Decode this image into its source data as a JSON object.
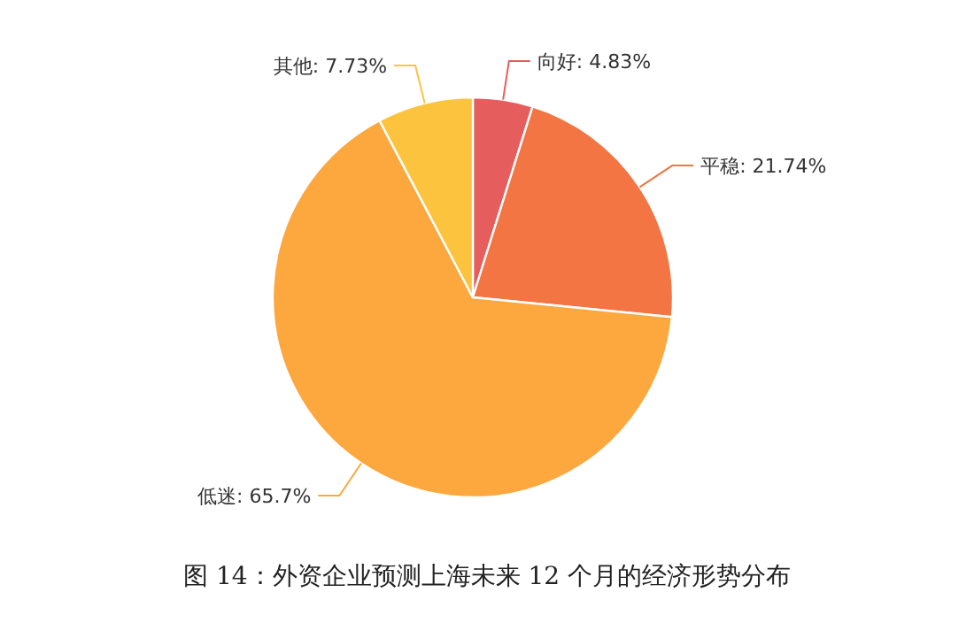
{
  "chart_data": {
    "type": "pie",
    "title": "图 14：外资企业预测上海未来 12 个月的经济形势分布",
    "categories": [
      "向好",
      "平稳",
      "低迷",
      "其他"
    ],
    "values": [
      4.83,
      21.74,
      65.7,
      7.73
    ],
    "value_labels": [
      "4.83%",
      "21.74%",
      "65.7%",
      "7.73%"
    ],
    "colors": [
      "#e65d5d",
      "#f27543",
      "#fca83f",
      "#fcc33e"
    ]
  }
}
